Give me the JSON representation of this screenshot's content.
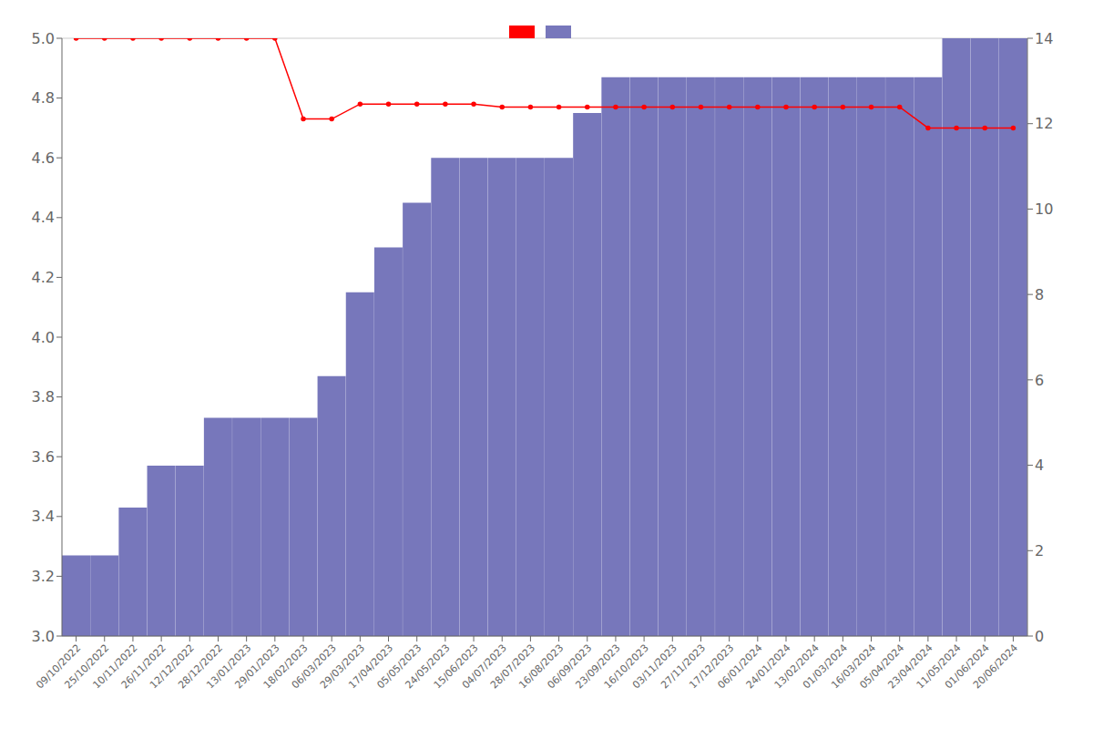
{
  "chart_data": {
    "type": "bar",
    "categories": [
      "09/10/2022",
      "25/10/2022",
      "10/11/2022",
      "26/11/2022",
      "12/12/2022",
      "28/12/2022",
      "13/01/2023",
      "29/01/2023",
      "18/02/2023",
      "06/03/2023",
      "29/03/2023",
      "17/04/2023",
      "05/05/2023",
      "24/05/2023",
      "15/06/2023",
      "04/07/2023",
      "28/07/2023",
      "16/08/2023",
      "06/09/2023",
      "23/09/2023",
      "16/10/2023",
      "03/11/2023",
      "27/11/2023",
      "17/12/2023",
      "06/01/2024",
      "24/01/2024",
      "13/02/2024",
      "01/03/2024",
      "16/03/2024",
      "05/04/2024",
      "23/04/2024",
      "11/05/2024",
      "01/06/2024",
      "20/06/2024"
    ],
    "series": [
      {
        "type": "line",
        "color": "#ff0000",
        "marker": "circle",
        "values": [
          5.0,
          5.0,
          5.0,
          5.0,
          5.0,
          5.0,
          5.0,
          5.0,
          4.73,
          4.73,
          4.78,
          4.78,
          4.78,
          4.78,
          4.78,
          4.77,
          4.77,
          4.77,
          4.77,
          4.77,
          4.77,
          4.77,
          4.77,
          4.77,
          4.77,
          4.77,
          4.77,
          4.77,
          4.77,
          4.77,
          4.7,
          4.7,
          4.7,
          4.7
        ]
      },
      {
        "type": "bar",
        "color": "#7777bb",
        "values": [
          3.27,
          3.27,
          3.43,
          3.57,
          3.57,
          3.73,
          3.73,
          3.73,
          3.73,
          3.87,
          4.15,
          4.3,
          4.45,
          4.6,
          4.6,
          4.6,
          4.6,
          4.6,
          4.75,
          4.87,
          4.87,
          4.87,
          4.87,
          4.87,
          4.87,
          4.87,
          4.87,
          4.87,
          4.87,
          4.87,
          4.87,
          5.0,
          5.0,
          5.0
        ]
      }
    ],
    "ylim": [
      3.0,
      5.0
    ],
    "yticks": [
      {
        "value": 3.0,
        "label": "3.0"
      },
      3.2,
      3.4,
      3.6,
      3.8,
      {
        "value": 4.0,
        "label": "4.0"
      },
      4.2,
      4.4,
      4.6,
      4.8,
      {
        "value": 5.0,
        "label": "5.0"
      }
    ],
    "y2lim": [
      0,
      14
    ],
    "y2ticks": [
      0,
      2,
      4,
      6,
      8,
      10,
      12,
      14
    ],
    "grid": true,
    "legend": "upper center"
  }
}
